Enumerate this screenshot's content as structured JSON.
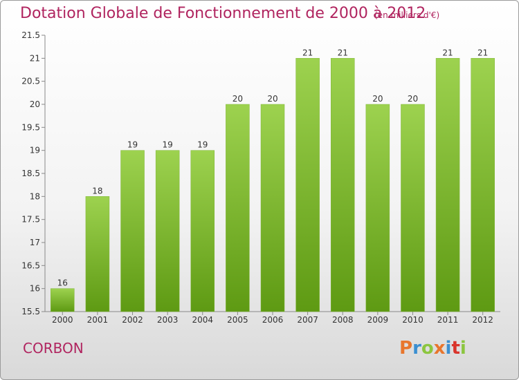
{
  "header": {
    "title": "Dotation Globale de Fonctionnement de 2000 à 2012",
    "unit_note": "(en milliers d'€)"
  },
  "footer": {
    "commune": "CORBON",
    "logo_text": "Proxiti"
  },
  "colors": {
    "title": "#b0245f",
    "bar_top": "#9dd24f",
    "bar_bottom": "#5e9a13",
    "logo_letters": [
      "#e8762d",
      "#3b8fd1",
      "#8cc63f",
      "#e8762d",
      "#3b8fd1",
      "#d9342b",
      "#8cc63f"
    ]
  },
  "chart_data": {
    "type": "bar",
    "title": "Dotation Globale de Fonctionnement de 2000 à 2012",
    "subtitle": "(en milliers d'€)",
    "xlabel": "",
    "ylabel": "",
    "categories": [
      "2000",
      "2001",
      "2002",
      "2003",
      "2004",
      "2005",
      "2006",
      "2007",
      "2008",
      "2009",
      "2010",
      "2011",
      "2012"
    ],
    "values": [
      16,
      18,
      19,
      19,
      19,
      20,
      20,
      21,
      21,
      20,
      20,
      21,
      21
    ],
    "ylim": [
      15.5,
      21.5
    ],
    "yticks": [
      "15.5",
      "16",
      "16.5",
      "17",
      "17.5",
      "18",
      "18.5",
      "19",
      "19.5",
      "20",
      "20.5",
      "21",
      "21.5"
    ],
    "grid": false,
    "legend": "none"
  }
}
